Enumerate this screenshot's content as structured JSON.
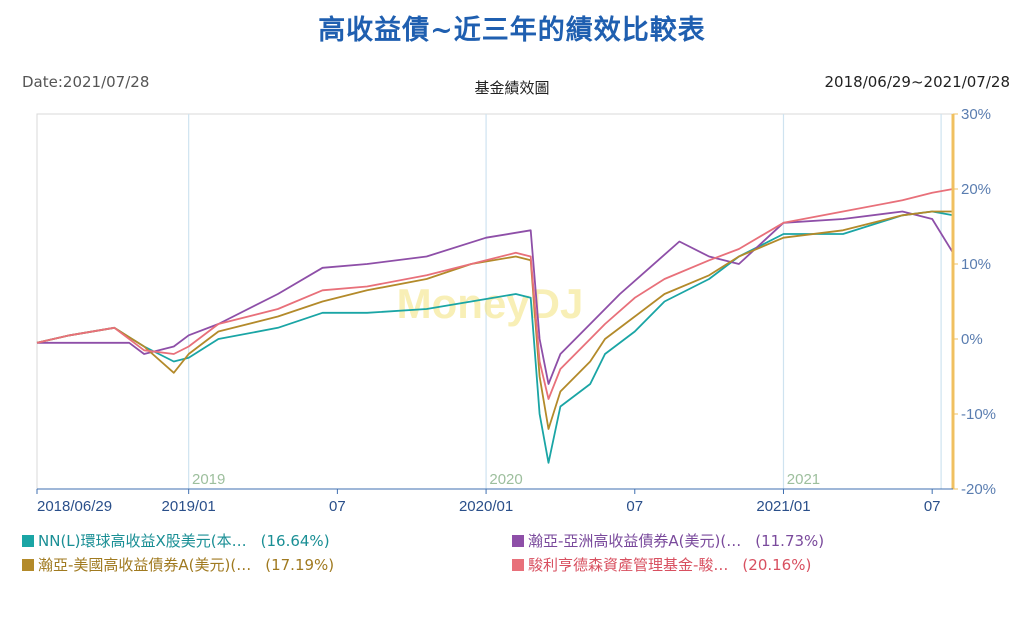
{
  "header": {
    "title": "高收益債~近三年的績效比較表",
    "date_label": "Date:2021/07/28",
    "chart_name": "基金績效圖",
    "range": "2018/06/29~2021/07/28"
  },
  "watermark": "MoneyDJ",
  "colors": {
    "nn": "#1aa5a5",
    "asia": "#8e4fa8",
    "us": "#b38a2a",
    "nomura": "#e8707a",
    "axis_right": "#f0c060",
    "grid": "#cfe3f0",
    "year_label": "#9dbf9d"
  },
  "chart_data": {
    "type": "line",
    "title": "基金績效圖",
    "x_tick_labels": [
      "2018/06/29",
      "2019/01",
      "07",
      "2020/01",
      "07",
      "2021/01",
      "07"
    ],
    "x_ticks": [
      2018.49,
      2019.0,
      2019.5,
      2020.0,
      2020.5,
      2021.0,
      2021.5
    ],
    "year_labels": [
      {
        "text": "2019",
        "x": 2019.0
      },
      {
        "text": "2020",
        "x": 2020.0
      },
      {
        "text": "2021",
        "x": 2021.0
      }
    ],
    "x_range": [
      2018.49,
      2021.57
    ],
    "y_range": [
      -20,
      30
    ],
    "y_ticks": [
      -20,
      -10,
      0,
      10,
      20,
      30
    ],
    "y_tick_labels": [
      "-20%",
      "-10%",
      "0%",
      "10%",
      "20%",
      "30%"
    ],
    "y_axis_side": "right",
    "grid": true,
    "series": [
      {
        "name": "NN(L)環球高收益X股美元(本…",
        "final_return": "(16.64%)",
        "color_key": "nn",
        "points": [
          [
            2018.49,
            -0.5
          ],
          [
            2018.6,
            0.5
          ],
          [
            2018.75,
            1.5
          ],
          [
            2018.85,
            -1.0
          ],
          [
            2018.95,
            -3.0
          ],
          [
            2019.0,
            -2.5
          ],
          [
            2019.1,
            0.0
          ],
          [
            2019.3,
            1.5
          ],
          [
            2019.45,
            3.5
          ],
          [
            2019.6,
            3.5
          ],
          [
            2019.8,
            4.0
          ],
          [
            2019.95,
            5.0
          ],
          [
            2020.1,
            6.0
          ],
          [
            2020.15,
            5.5
          ],
          [
            2020.18,
            -10.0
          ],
          [
            2020.21,
            -16.5
          ],
          [
            2020.25,
            -9.0
          ],
          [
            2020.35,
            -6.0
          ],
          [
            2020.4,
            -2.0
          ],
          [
            2020.5,
            1.0
          ],
          [
            2020.6,
            5.0
          ],
          [
            2020.75,
            8.0
          ],
          [
            2020.85,
            11.0
          ],
          [
            2021.0,
            14.0
          ],
          [
            2021.2,
            14.0
          ],
          [
            2021.4,
            16.5
          ],
          [
            2021.5,
            17.0
          ],
          [
            2021.57,
            16.5
          ]
        ]
      },
      {
        "name": "瀚亞-亞洲高收益債券A(美元)(…",
        "final_return": "(11.73%)",
        "color_key": "asia",
        "points": [
          [
            2018.49,
            -0.5
          ],
          [
            2018.8,
            -0.5
          ],
          [
            2018.85,
            -2.0
          ],
          [
            2018.95,
            -1.0
          ],
          [
            2019.0,
            0.5
          ],
          [
            2019.1,
            2.0
          ],
          [
            2019.3,
            6.0
          ],
          [
            2019.45,
            9.5
          ],
          [
            2019.6,
            10.0
          ],
          [
            2019.8,
            11.0
          ],
          [
            2020.0,
            13.5
          ],
          [
            2020.15,
            14.5
          ],
          [
            2020.18,
            0.0
          ],
          [
            2020.21,
            -6.0
          ],
          [
            2020.25,
            -2.0
          ],
          [
            2020.35,
            2.0
          ],
          [
            2020.45,
            6.0
          ],
          [
            2020.55,
            9.5
          ],
          [
            2020.65,
            13.0
          ],
          [
            2020.75,
            11.0
          ],
          [
            2020.85,
            10.0
          ],
          [
            2021.0,
            15.5
          ],
          [
            2021.2,
            16.0
          ],
          [
            2021.4,
            17.0
          ],
          [
            2021.5,
            16.0
          ],
          [
            2021.57,
            11.5
          ]
        ]
      },
      {
        "name": "瀚亞-美國高收益債券A(美元)(…",
        "final_return": "(17.19%)",
        "color_key": "us",
        "points": [
          [
            2018.49,
            -0.5
          ],
          [
            2018.6,
            0.5
          ],
          [
            2018.75,
            1.5
          ],
          [
            2018.85,
            -1.0
          ],
          [
            2018.95,
            -4.5
          ],
          [
            2019.0,
            -2.0
          ],
          [
            2019.1,
            1.0
          ],
          [
            2019.3,
            3.0
          ],
          [
            2019.45,
            5.0
          ],
          [
            2019.6,
            6.5
          ],
          [
            2019.8,
            8.0
          ],
          [
            2019.95,
            10.0
          ],
          [
            2020.1,
            11.0
          ],
          [
            2020.15,
            10.5
          ],
          [
            2020.18,
            -5.0
          ],
          [
            2020.21,
            -12.0
          ],
          [
            2020.25,
            -7.0
          ],
          [
            2020.35,
            -3.0
          ],
          [
            2020.4,
            0.0
          ],
          [
            2020.5,
            3.0
          ],
          [
            2020.6,
            6.0
          ],
          [
            2020.75,
            8.5
          ],
          [
            2020.85,
            11.0
          ],
          [
            2021.0,
            13.5
          ],
          [
            2021.2,
            14.5
          ],
          [
            2021.4,
            16.5
          ],
          [
            2021.5,
            17.0
          ],
          [
            2021.57,
            17.0
          ]
        ]
      },
      {
        "name": "駿利亨德森資產管理基金-駿…",
        "final_return": "(20.16%)",
        "color_key": "nomura",
        "points": [
          [
            2018.49,
            -0.5
          ],
          [
            2018.6,
            0.5
          ],
          [
            2018.75,
            1.5
          ],
          [
            2018.85,
            -1.5
          ],
          [
            2018.95,
            -2.0
          ],
          [
            2019.0,
            -1.0
          ],
          [
            2019.1,
            2.0
          ],
          [
            2019.3,
            4.0
          ],
          [
            2019.45,
            6.5
          ],
          [
            2019.6,
            7.0
          ],
          [
            2019.8,
            8.5
          ],
          [
            2019.95,
            10.0
          ],
          [
            2020.1,
            11.5
          ],
          [
            2020.15,
            11.0
          ],
          [
            2020.18,
            -3.0
          ],
          [
            2020.21,
            -8.0
          ],
          [
            2020.25,
            -4.0
          ],
          [
            2020.35,
            0.0
          ],
          [
            2020.4,
            2.0
          ],
          [
            2020.5,
            5.5
          ],
          [
            2020.6,
            8.0
          ],
          [
            2020.75,
            10.5
          ],
          [
            2020.85,
            12.0
          ],
          [
            2021.0,
            15.5
          ],
          [
            2021.2,
            17.0
          ],
          [
            2021.4,
            18.5
          ],
          [
            2021.5,
            19.5
          ],
          [
            2021.57,
            20.0
          ]
        ]
      }
    ]
  }
}
